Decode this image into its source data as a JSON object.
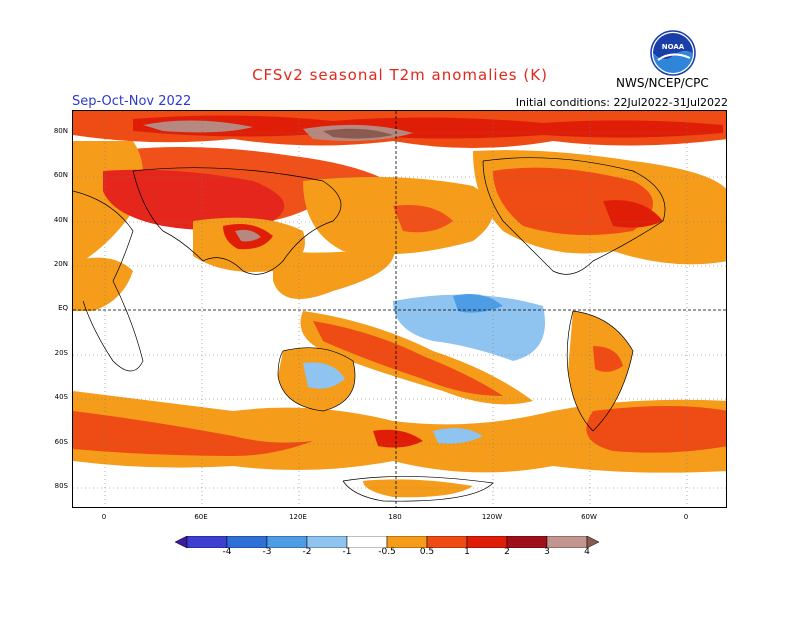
{
  "title": "CFSv2  seasonal  T2m  anomalies  (K)",
  "season": "Sep-Oct-Nov 2022",
  "initial_conditions": "Initial conditions: 22Jul2022-31Jul2022",
  "agency": "NWS/NCEP/CPC",
  "logo_text": "NOAA",
  "lat_labels": [
    "80N",
    "60N",
    "40N",
    "20N",
    "EQ",
    "20S",
    "40S",
    "60S",
    "80S"
  ],
  "lon_labels": [
    "0",
    "60E",
    "120E",
    "180",
    "120W",
    "60W",
    "0"
  ],
  "colorbar": {
    "labels": [
      "-4",
      "-3",
      "-2",
      "-1",
      "-0.5",
      "0.5",
      "1",
      "2",
      "3",
      "4"
    ],
    "colors": [
      "#3c1d9e",
      "#3e3fd0",
      "#2f6fd8",
      "#4d9de6",
      "#8fc3f0",
      "#ffffff",
      "#f59c1a",
      "#ef4b14",
      "#e01e08",
      "#a0101a",
      "#c29590",
      "#8a5a50"
    ]
  },
  "colors": {
    "title": "#e0281e",
    "season": "#2a3ad0",
    "warm1": "#f5a01c",
    "warm2": "#f0501a",
    "warm3": "#e41e10",
    "hot": "#a51b1c",
    "veryhot": "#b78880",
    "cool1": "#8fc3f0",
    "cool2": "#4d9de6"
  }
}
